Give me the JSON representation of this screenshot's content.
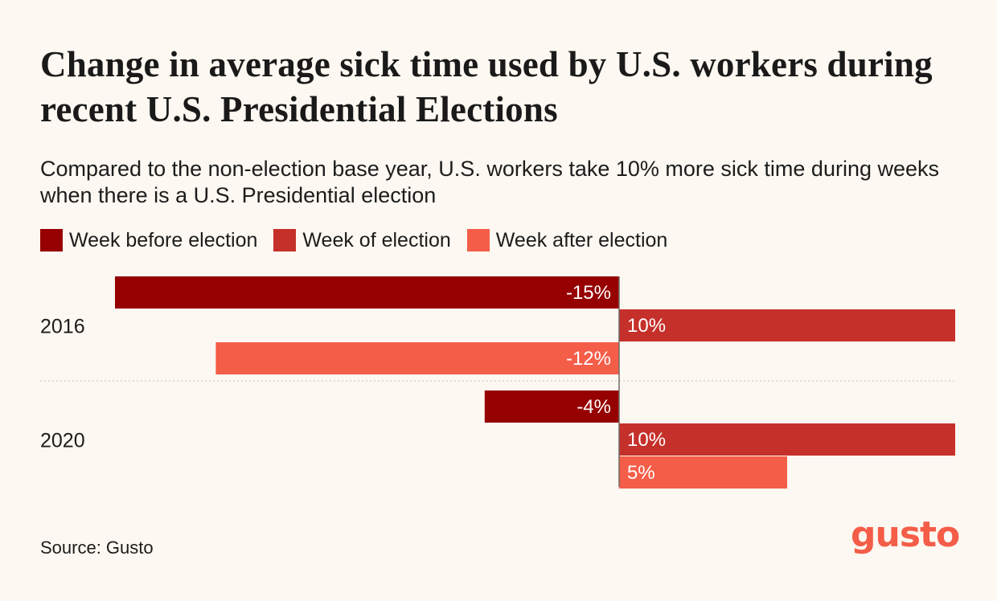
{
  "title": "Change in average sick time used by U.S. workers during recent U.S. Presidential Elections",
  "subtitle": "Compared to the non-election base year, U.S. workers take 10% more sick time during weeks when there is a U.S. Presidential election",
  "source": "Source: Gusto",
  "logo_text": "gusto",
  "chart_data": {
    "type": "bar",
    "orientation": "horizontal",
    "categories": [
      "2016",
      "2020"
    ],
    "series": [
      {
        "name": "Week before election",
        "color": "#960000",
        "values": [
          -15,
          -4
        ],
        "labels": [
          "-15%",
          "-4%"
        ]
      },
      {
        "name": "Week of election",
        "color": "#c6302a",
        "values": [
          10,
          10
        ],
        "labels": [
          "10%",
          "10%"
        ]
      },
      {
        "name": "Week after election",
        "color": "#f45d48",
        "values": [
          -12,
          5
        ],
        "labels": [
          "-12%",
          "5%"
        ]
      }
    ],
    "xlim": [
      -15,
      10
    ],
    "grid": false,
    "legend_position": "top-left"
  }
}
